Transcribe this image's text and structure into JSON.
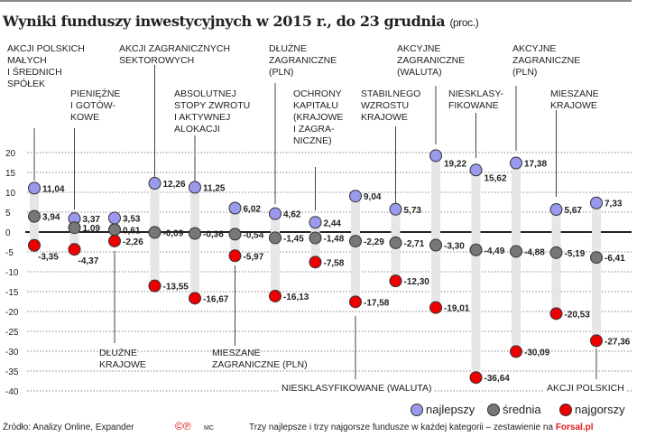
{
  "title": "Wyniki funduszy inwestycyjnych w 2015 r., do 23 grudnia",
  "unit": "(proc.)",
  "chart_data": {
    "type": "scatter",
    "title": "Wyniki funduszy inwestycyjnych w 2015 r., do 23 grudnia (proc.)",
    "ylim": [
      -40,
      20
    ],
    "yticks": [
      "20",
      "15",
      "10",
      "5",
      "0",
      "-5",
      "-10",
      "-15",
      "-20",
      "-25",
      "-30",
      "-35",
      "-40"
    ],
    "grid": true,
    "legend_placement": "bottom-right",
    "categories": [
      [
        "AKCJI POLSKICH",
        "MAŁYCH",
        "I ŚREDNICH",
        "SPÓŁEK"
      ],
      [
        "PIENIĘŻNE",
        "I GOTÓW-",
        "KOWE"
      ],
      [
        "DŁUŻNE",
        "KRAJOWE"
      ],
      [
        "AKCJI ZAGRANICZNYCH",
        "SEKTOROWYCH"
      ],
      [
        "ABSOLUTNEJ",
        "STOPY ZWROTU",
        "I AKTYWNEJ",
        "ALOKACJI"
      ],
      [
        "MIESZANE",
        "ZAGRANICZNE (PLN)"
      ],
      [
        "DŁUŻNE",
        "ZAGRANICZNE",
        "(PLN)"
      ],
      [
        "OCHRONY",
        "KAPITAŁU",
        "(KRAJOWE",
        "I ZAGRA-",
        "NICZNE)"
      ],
      [
        "NIESKLASYFIKOWANE (WALUTA)"
      ],
      [
        "STABILNEGO",
        "WZROSTU",
        "KRAJOWE"
      ],
      [
        "AKCYJNE",
        "ZAGRANICZNE",
        "(WALUTA)"
      ],
      [
        "NIESKLASY-",
        "FIKOWANE"
      ],
      [
        "AKCYJNE",
        "ZAGRANICZNE",
        "(PLN)"
      ],
      [
        "MIESZANE",
        "KRAJOWE"
      ],
      [
        "AKCJI POLSKICH"
      ]
    ],
    "series": [
      {
        "name": "najlepszy",
        "color": "#9999ee",
        "values": [
          11.04,
          3.37,
          3.53,
          12.26,
          11.25,
          6.02,
          4.62,
          2.44,
          9.04,
          5.73,
          19.22,
          15.62,
          17.38,
          5.67,
          7.33
        ],
        "labels": [
          "11,04",
          "3,37",
          "3,53",
          "12,26",
          "11,25",
          "6,02",
          "4,62",
          "2,44",
          "9,04",
          "5,73",
          "19,22",
          "15,62",
          "17,38",
          "5,67",
          "7,33"
        ]
      },
      {
        "name": "średnia",
        "color": "#777777",
        "values": [
          3.94,
          1.09,
          0.61,
          -0.09,
          -0.36,
          -0.54,
          -1.45,
          -1.48,
          -2.29,
          -2.71,
          -3.3,
          -4.49,
          -4.88,
          -5.19,
          -6.41
        ],
        "labels": [
          "3,94",
          "1,09",
          "0,61",
          "-0,09",
          "-0,36",
          "-0,54",
          "-1,45",
          "-1,48",
          "-2,29",
          "-2,71",
          "-3,30",
          "-4,49",
          "-4,88",
          "-5,19",
          "-6,41"
        ]
      },
      {
        "name": "najgorszy",
        "color": "#ee0000",
        "values": [
          -3.35,
          -4.37,
          -2.26,
          -13.55,
          -16.67,
          -5.97,
          -16.13,
          -7.58,
          -17.58,
          -12.3,
          -19.01,
          -36.64,
          -30.09,
          -20.53,
          -27.36
        ],
        "labels": [
          "-3,35",
          "-4,37",
          "-2,26",
          "-13,55",
          "-16,67",
          "-5,97",
          "-16,13",
          "-7,58",
          "-17,58",
          "-12,30",
          "-19,01",
          "-36,64",
          "-30,09",
          "-20,53",
          "-27,36"
        ]
      }
    ]
  },
  "footer": {
    "source": "Źródło: Analizy Online, Expander",
    "copyright": "©℗",
    "author": "MC",
    "note": "Trzy najlepsze i trzy najgorsze fundusze w każdej kategorii – zestawienie na",
    "brand": "Forsal.pl"
  }
}
